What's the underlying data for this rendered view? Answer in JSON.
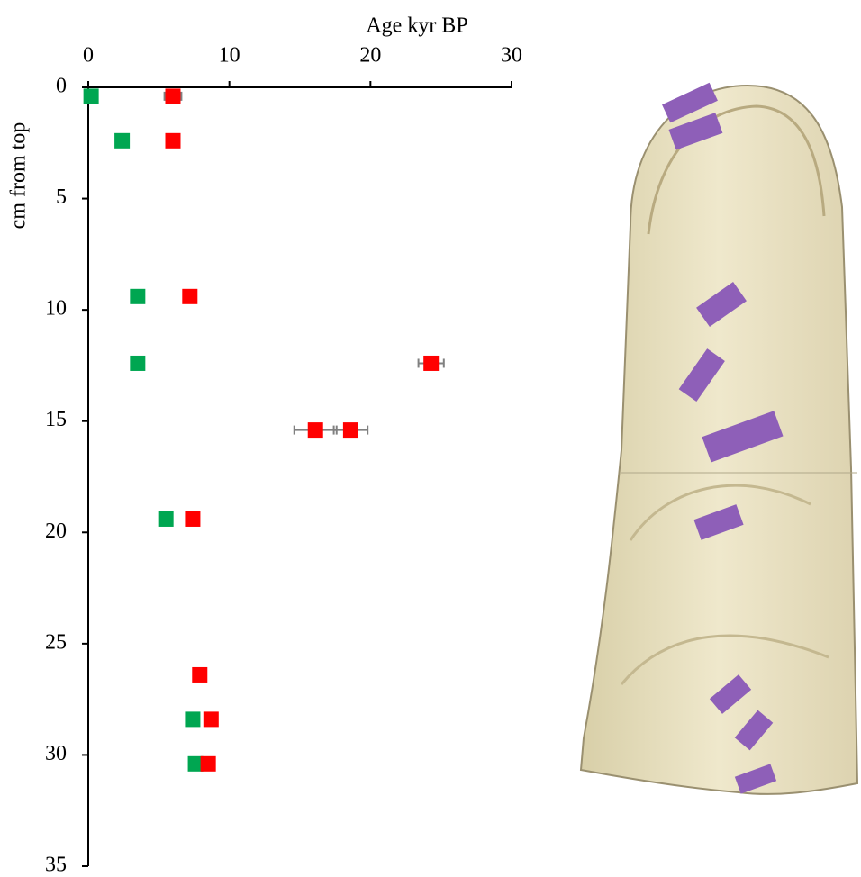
{
  "chart_data": {
    "type": "scatter",
    "x_label": "Age kyr BP",
    "y_label": "cm from top",
    "xlim": [
      0,
      30
    ],
    "xticks": [
      0,
      10,
      20,
      30
    ],
    "ylim": [
      0,
      35
    ],
    "yticks": [
      0,
      5,
      10,
      15,
      20,
      25,
      30,
      35
    ],
    "y_inverted": true,
    "x_axis_position": "top",
    "grid": false,
    "series": [
      {
        "color": "#00a651",
        "error_color": "#00b0f0",
        "x": [
          0.2,
          2.4,
          3.5,
          3.5,
          5.5,
          7.4,
          7.6
        ],
        "y": [
          0.4,
          2.4,
          9.4,
          12.4,
          19.4,
          28.4,
          30.4
        ],
        "xerr": [
          null,
          null,
          0.2,
          null,
          0.2,
          null,
          null
        ]
      },
      {
        "color": "#ff0000",
        "error_color": "#808080",
        "x": [
          6.0,
          6.0,
          7.2,
          24.3,
          16.1,
          18.6,
          7.4,
          7.9,
          8.7,
          8.5
        ],
        "y": [
          0.4,
          2.4,
          9.4,
          12.4,
          15.4,
          15.4,
          19.4,
          26.4,
          28.4,
          30.4
        ],
        "xerr": [
          0.6,
          null,
          0.3,
          0.9,
          1.5,
          1.2,
          0.3,
          null,
          null,
          null
        ]
      }
    ]
  }
}
